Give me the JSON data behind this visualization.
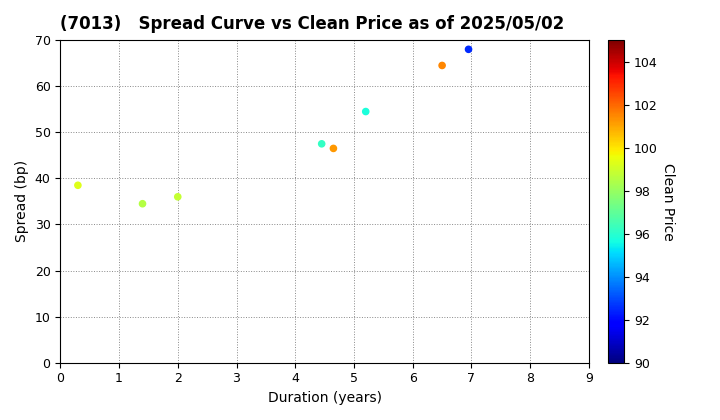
{
  "title": "(7013)   Spread Curve vs Clean Price as of 2025/05/02",
  "xlabel": "Duration (years)",
  "ylabel": "Spread (bp)",
  "colorbar_label": "Clean Price",
  "xlim": [
    0,
    9
  ],
  "ylim": [
    0,
    70
  ],
  "xticks": [
    0,
    1,
    2,
    3,
    4,
    5,
    6,
    7,
    8,
    9
  ],
  "yticks": [
    0,
    10,
    20,
    30,
    40,
    50,
    60,
    70
  ],
  "cmap_vmin": 90,
  "cmap_vmax": 105,
  "cmap_ticks": [
    90,
    92,
    94,
    96,
    98,
    100,
    102,
    104
  ],
  "points": [
    {
      "duration": 0.3,
      "spread": 38.5,
      "price": 99.3
    },
    {
      "duration": 1.4,
      "spread": 34.5,
      "price": 98.5
    },
    {
      "duration": 2.0,
      "spread": 36.0,
      "price": 98.8
    },
    {
      "duration": 4.45,
      "spread": 47.5,
      "price": 96.2
    },
    {
      "duration": 4.65,
      "spread": 46.5,
      "price": 101.2
    },
    {
      "duration": 5.2,
      "spread": 54.5,
      "price": 95.8
    },
    {
      "duration": 6.5,
      "spread": 64.5,
      "price": 101.5
    },
    {
      "duration": 6.95,
      "spread": 68.0,
      "price": 92.5
    }
  ],
  "marker_size": 20,
  "background_color": "#ffffff",
  "grid_color": "#888888",
  "title_fontsize": 12,
  "label_fontsize": 10,
  "tick_fontsize": 9,
  "colorbar_fontsize": 10
}
